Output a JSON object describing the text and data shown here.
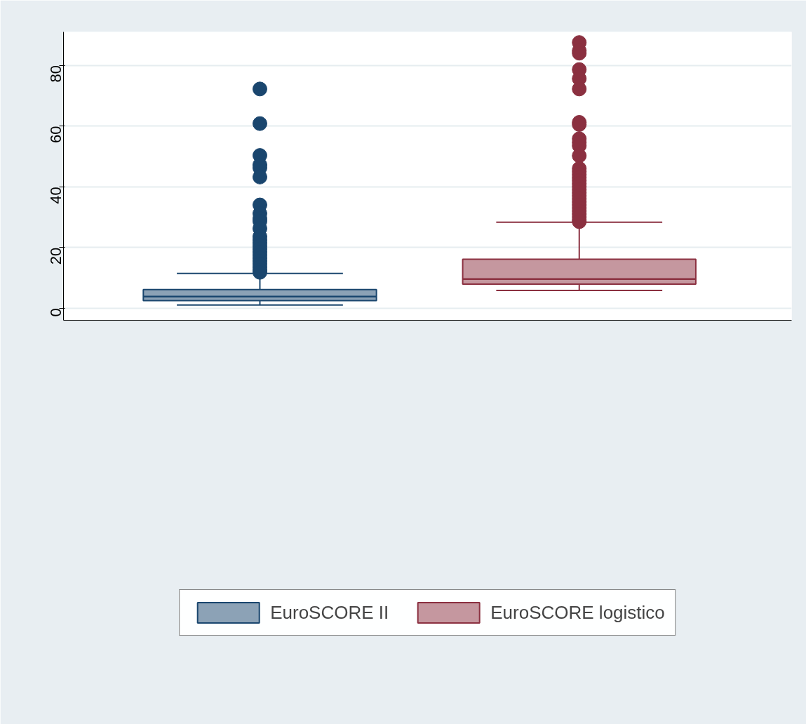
{
  "chart_data": {
    "type": "box",
    "categories": [
      null,
      null
    ],
    "ylim": [
      -4,
      91
    ],
    "yticks": [
      0,
      20,
      40,
      60,
      80
    ],
    "grid": "y",
    "legend": "bottom",
    "series": [
      {
        "name": "EuroSCORE II",
        "color": "#1a466e",
        "boxes": [
          {
            "low": 1.0,
            "q1": 2.5,
            "median": 3.8,
            "q3": 6.1,
            "high": 11.4,
            "outliers": [
              72.2,
              60.8,
              50.3,
              47.2,
              46.2,
              43.2,
              34.0,
              31.2,
              29.5,
              28.6,
              26.2,
              23.6,
              22.5,
              21.5,
              20.5,
              19.5,
              18.5,
              17.5,
              16.5,
              15.5,
              14.5,
              13.5,
              12.5,
              11.8
            ]
          },
          null
        ]
      },
      {
        "name": "EuroSCORE logistico",
        "color": "#8b3040",
        "boxes": [
          null,
          {
            "low": 5.8,
            "q1": 7.9,
            "median": 9.6,
            "q3": 16.1,
            "high": 28.3,
            "outliers": [
              87.5,
              84.8,
              84.0,
              78.6,
              75.6,
              72.2,
              61.2,
              60.5,
              55.8,
              54.6,
              53.5,
              50.2,
              46.0,
              45.0,
              44.0,
              43.0,
              42.0,
              41.0,
              40.0,
              39.0,
              38.0,
              37.0,
              36.0,
              35.0,
              34.0,
              33.0,
              32.0,
              31.0,
              30.0,
              29.0,
              28.5
            ]
          }
        ]
      }
    ]
  }
}
